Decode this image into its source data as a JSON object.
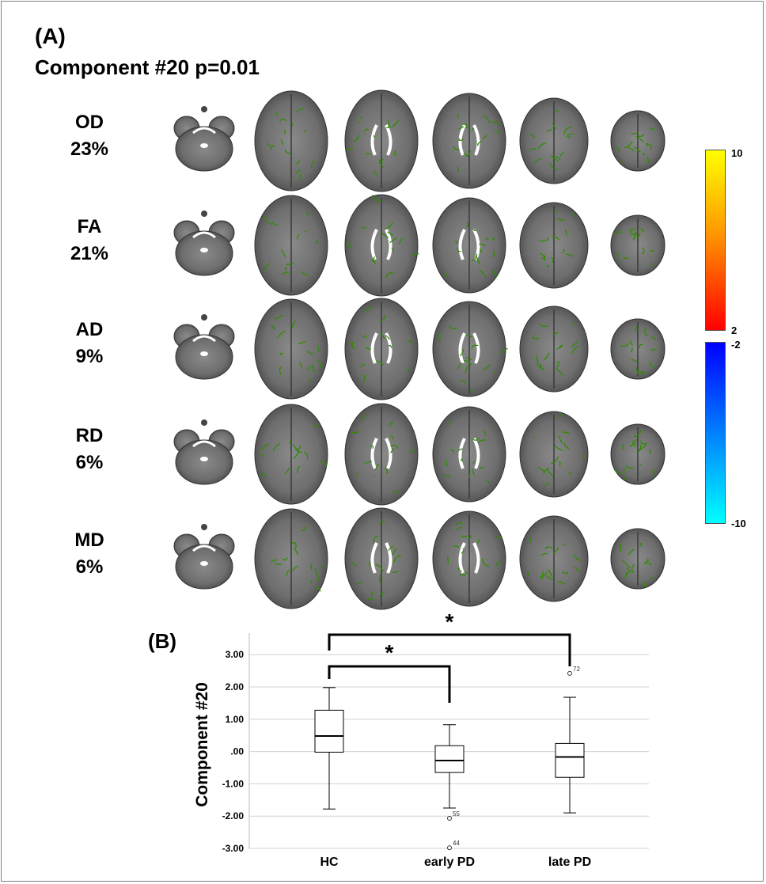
{
  "panel_a": {
    "label": "(A)",
    "title": "Component #20 p=0.01",
    "rows": [
      {
        "metric": "OD",
        "percent": "23%"
      },
      {
        "metric": "FA",
        "percent": "21%"
      },
      {
        "metric": "AD",
        "percent": "9%"
      },
      {
        "metric": "RD",
        "percent": "6%"
      },
      {
        "metric": "MD",
        "percent": "6%"
      }
    ],
    "colorbar": {
      "positive_max": "10",
      "positive_min": "2",
      "negative_min": "-2",
      "negative_max": "-10",
      "colors": {
        "pos_top": "#ffff00",
        "pos_bottom": "#ff0000",
        "neg_top": "#0000ff",
        "neg_bottom": "#00ffff"
      }
    },
    "colors": {
      "brain": "#6e6e6e",
      "tract": "#2e8b00"
    }
  },
  "panel_b": {
    "label": "(B)"
  },
  "chart_data": {
    "type": "box",
    "ylabel": "Component #20",
    "xlabel": "",
    "ylim": [
      -3.0,
      3.5
    ],
    "yticks": [
      {
        "value": 3.0,
        "label": "3.00"
      },
      {
        "value": 2.0,
        "label": "2.00"
      },
      {
        "value": 1.0,
        "label": "1.00"
      },
      {
        "value": 0.0,
        "label": ".00"
      },
      {
        "value": -1.0,
        "label": "-1.00"
      },
      {
        "value": -2.0,
        "label": "-2.00"
      },
      {
        "value": -3.0,
        "label": "-3.00"
      }
    ],
    "grid": true,
    "categories": [
      "HC",
      "early PD",
      "late PD"
    ],
    "boxes": [
      {
        "category": "HC",
        "whisker_low": -1.78,
        "q1": -0.02,
        "median": 0.48,
        "q3": 1.28,
        "whisker_high": 1.98,
        "outliers": []
      },
      {
        "category": "early PD",
        "whisker_low": -1.75,
        "q1": -0.65,
        "median": -0.28,
        "q3": 0.18,
        "whisker_high": 0.83,
        "outliers": [
          {
            "value": -2.07,
            "label": "55"
          },
          {
            "value": -2.98,
            "label": "44"
          }
        ]
      },
      {
        "category": "late PD",
        "whisker_low": -1.9,
        "q1": -0.8,
        "median": -0.17,
        "q3": 0.25,
        "whisker_high": 1.68,
        "outliers": [
          {
            "value": 2.42,
            "label": "72"
          }
        ]
      }
    ],
    "significance": [
      {
        "from": "HC",
        "to": "early PD",
        "label": "*"
      },
      {
        "from": "HC",
        "to": "late PD",
        "label": "*"
      }
    ]
  }
}
